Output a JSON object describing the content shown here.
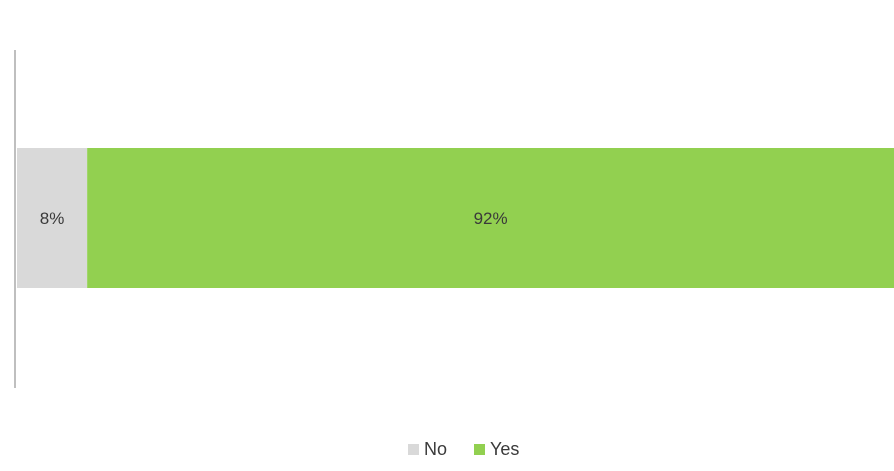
{
  "chart_data": {
    "type": "bar",
    "orientation": "horizontal",
    "stacked": true,
    "stack_mode": "percent",
    "categories": [
      ""
    ],
    "series": [
      {
        "name": "No",
        "values": [
          8
        ],
        "label": "8%",
        "color": "#d9d9d9"
      },
      {
        "name": "Yes",
        "values": [
          92
        ],
        "label": "92%",
        "color": "#92d050"
      }
    ],
    "xlim": [
      0,
      100
    ],
    "grid": false,
    "legend": {
      "position": "bottom",
      "entries": [
        "No",
        "Yes"
      ]
    },
    "title": "",
    "xlabel": "",
    "ylabel": ""
  }
}
